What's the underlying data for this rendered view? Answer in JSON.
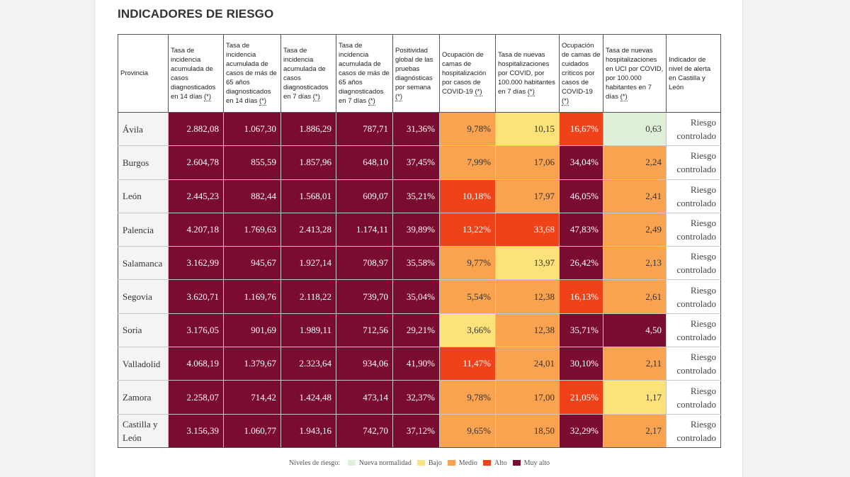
{
  "title": "INDICADORES DE RIESGO",
  "headers": [
    {
      "text": "Provincia",
      "note": ""
    },
    {
      "text": "Tasa de incidencia acumulada de casos diagnosticados en 14 días ",
      "note": "(*)"
    },
    {
      "text": "Tasa de incidencia acumulada de casos de más de 65 años diagnosticados en 14 días ",
      "note": "(*)"
    },
    {
      "text": "Tasa de incidencia acumulada de casos diagnosticados en 7 días ",
      "note": "(*)"
    },
    {
      "text": "Tasa de incidencia acumulada de casos de más de 65 años diagnosticados en 7 días ",
      "note": "(*)"
    },
    {
      "text": "Positividad global de las pruebas diagnósticas por semana ",
      "note": "(*)"
    },
    {
      "text": "Ocupación de camas de hospitalización por casos de COVID-19 ",
      "note": "(*)"
    },
    {
      "text": "Tasa de nuevas hospitalizaciones por COVID, por 100.000 habitantes en 7 días ",
      "note": "(*)"
    },
    {
      "text": "Ocupación de camas de cuidados críticos por casos de COVID-19 ",
      "note": "(*)"
    },
    {
      "text": "Tasa de nuevas hospitalizaciones en UCI por COVID, por 100.000 habitantes en 7 días ",
      "note": "(*)"
    },
    {
      "text": "Indicador de nivel de alerta en Castilla y León",
      "note": ""
    }
  ],
  "rows": [
    {
      "province": "Ávila",
      "level": "Riesgo controlado",
      "cells": [
        {
          "v": "2.882,08",
          "c": "muyalto"
        },
        {
          "v": "1.067,30",
          "c": "muyalto"
        },
        {
          "v": "1.886,29",
          "c": "muyalto"
        },
        {
          "v": "787,71",
          "c": "muyalto"
        },
        {
          "v": "31,36%",
          "c": "muyalto"
        },
        {
          "v": "9,78%",
          "c": "medio"
        },
        {
          "v": "10,15",
          "c": "bajo"
        },
        {
          "v": "16,67%",
          "c": "alto"
        },
        {
          "v": "0,63",
          "c": "nueva"
        }
      ]
    },
    {
      "province": "Burgos",
      "level": "Riesgo controlado",
      "cells": [
        {
          "v": "2.604,78",
          "c": "muyalto"
        },
        {
          "v": "855,59",
          "c": "muyalto"
        },
        {
          "v": "1.857,96",
          "c": "muyalto"
        },
        {
          "v": "648,10",
          "c": "muyalto"
        },
        {
          "v": "37,45%",
          "c": "muyalto"
        },
        {
          "v": "7,99%",
          "c": "medio"
        },
        {
          "v": "17,06",
          "c": "medio"
        },
        {
          "v": "34,04%",
          "c": "muyalto"
        },
        {
          "v": "2,24",
          "c": "medio"
        }
      ]
    },
    {
      "province": "León",
      "level": "Riesgo controlado",
      "cells": [
        {
          "v": "2.445,23",
          "c": "muyalto"
        },
        {
          "v": "882,44",
          "c": "muyalto"
        },
        {
          "v": "1.568,01",
          "c": "muyalto"
        },
        {
          "v": "609,07",
          "c": "muyalto"
        },
        {
          "v": "35,21%",
          "c": "muyalto"
        },
        {
          "v": "10,18%",
          "c": "alto"
        },
        {
          "v": "17,97",
          "c": "medio"
        },
        {
          "v": "46,05%",
          "c": "muyalto"
        },
        {
          "v": "2,41",
          "c": "medio"
        }
      ]
    },
    {
      "province": "Palencia",
      "level": "Riesgo controlado",
      "cells": [
        {
          "v": "4.207,18",
          "c": "muyalto"
        },
        {
          "v": "1.769,63",
          "c": "muyalto"
        },
        {
          "v": "2.413,28",
          "c": "muyalto"
        },
        {
          "v": "1.174,11",
          "c": "muyalto"
        },
        {
          "v": "39,89%",
          "c": "muyalto"
        },
        {
          "v": "13,22%",
          "c": "alto"
        },
        {
          "v": "33,68",
          "c": "alto"
        },
        {
          "v": "47,83%",
          "c": "muyalto"
        },
        {
          "v": "2,49",
          "c": "medio"
        }
      ]
    },
    {
      "province": "Salamanca",
      "level": "Riesgo controlado",
      "cells": [
        {
          "v": "3.162,99",
          "c": "muyalto"
        },
        {
          "v": "945,67",
          "c": "muyalto"
        },
        {
          "v": "1.927,14",
          "c": "muyalto"
        },
        {
          "v": "708,97",
          "c": "muyalto"
        },
        {
          "v": "35,58%",
          "c": "muyalto"
        },
        {
          "v": "9,77%",
          "c": "medio"
        },
        {
          "v": "13,97",
          "c": "bajo"
        },
        {
          "v": "26,42%",
          "c": "muyalto"
        },
        {
          "v": "2,13",
          "c": "medio"
        }
      ]
    },
    {
      "province": "Segovia",
      "level": "Riesgo controlado",
      "cells": [
        {
          "v": "3.620,71",
          "c": "muyalto"
        },
        {
          "v": "1.169,76",
          "c": "muyalto"
        },
        {
          "v": "2.118,22",
          "c": "muyalto"
        },
        {
          "v": "739,70",
          "c": "muyalto"
        },
        {
          "v": "35,04%",
          "c": "muyalto"
        },
        {
          "v": "5,54%",
          "c": "medio"
        },
        {
          "v": "12,38",
          "c": "medio"
        },
        {
          "v": "16,13%",
          "c": "alto"
        },
        {
          "v": "2,61",
          "c": "medio"
        }
      ]
    },
    {
      "province": "Soria",
      "level": "Riesgo controlado",
      "cells": [
        {
          "v": "3.176,05",
          "c": "muyalto"
        },
        {
          "v": "901,69",
          "c": "muyalto"
        },
        {
          "v": "1.989,11",
          "c": "muyalto"
        },
        {
          "v": "712,56",
          "c": "muyalto"
        },
        {
          "v": "29,21%",
          "c": "muyalto"
        },
        {
          "v": "3,66%",
          "c": "bajo"
        },
        {
          "v": "12,38",
          "c": "medio"
        },
        {
          "v": "35,71%",
          "c": "muyalto"
        },
        {
          "v": "4,50",
          "c": "muyalto"
        }
      ]
    },
    {
      "province": "Valladolid",
      "level": "Riesgo controlado",
      "cells": [
        {
          "v": "4.068,19",
          "c": "muyalto"
        },
        {
          "v": "1.379,67",
          "c": "muyalto"
        },
        {
          "v": "2.323,64",
          "c": "muyalto"
        },
        {
          "v": "934,06",
          "c": "muyalto"
        },
        {
          "v": "41,90%",
          "c": "muyalto"
        },
        {
          "v": "11,47%",
          "c": "alto"
        },
        {
          "v": "24,01",
          "c": "medio"
        },
        {
          "v": "30,10%",
          "c": "muyalto"
        },
        {
          "v": "2,11",
          "c": "medio"
        }
      ]
    },
    {
      "province": "Zamora",
      "level": "Riesgo controlado",
      "cells": [
        {
          "v": "2.258,07",
          "c": "muyalto"
        },
        {
          "v": "714,42",
          "c": "muyalto"
        },
        {
          "v": "1.424,48",
          "c": "muyalto"
        },
        {
          "v": "473,14",
          "c": "muyalto"
        },
        {
          "v": "32,37%",
          "c": "muyalto"
        },
        {
          "v": "9,78%",
          "c": "medio"
        },
        {
          "v": "17,00",
          "c": "medio"
        },
        {
          "v": "21,05%",
          "c": "alto"
        },
        {
          "v": "1,17",
          "c": "bajo"
        }
      ]
    },
    {
      "province": "Castilla y León",
      "level": "Riesgo controlado",
      "cells": [
        {
          "v": "3.156,39",
          "c": "muyalto"
        },
        {
          "v": "1.060,77",
          "c": "muyalto"
        },
        {
          "v": "1.943,16",
          "c": "muyalto"
        },
        {
          "v": "742,70",
          "c": "muyalto"
        },
        {
          "v": "37,12%",
          "c": "muyalto"
        },
        {
          "v": "9,65%",
          "c": "medio"
        },
        {
          "v": "18,50",
          "c": "medio"
        },
        {
          "v": "32,29%",
          "c": "muyalto"
        },
        {
          "v": "2,17",
          "c": "medio"
        }
      ]
    }
  ],
  "legend": {
    "label": "Niveles de riesgo:",
    "items": [
      {
        "key": "nueva",
        "label": "Nueva normalidad",
        "color": "#dff0d8"
      },
      {
        "key": "bajo",
        "label": "Bajo",
        "color": "#fde27a"
      },
      {
        "key": "medio",
        "label": "Medio",
        "color": "#f9a350"
      },
      {
        "key": "alto",
        "label": "Alto",
        "color": "#f04219"
      },
      {
        "key": "muyalto",
        "label": "Muy alto",
        "color": "#7b0c31"
      }
    ]
  }
}
